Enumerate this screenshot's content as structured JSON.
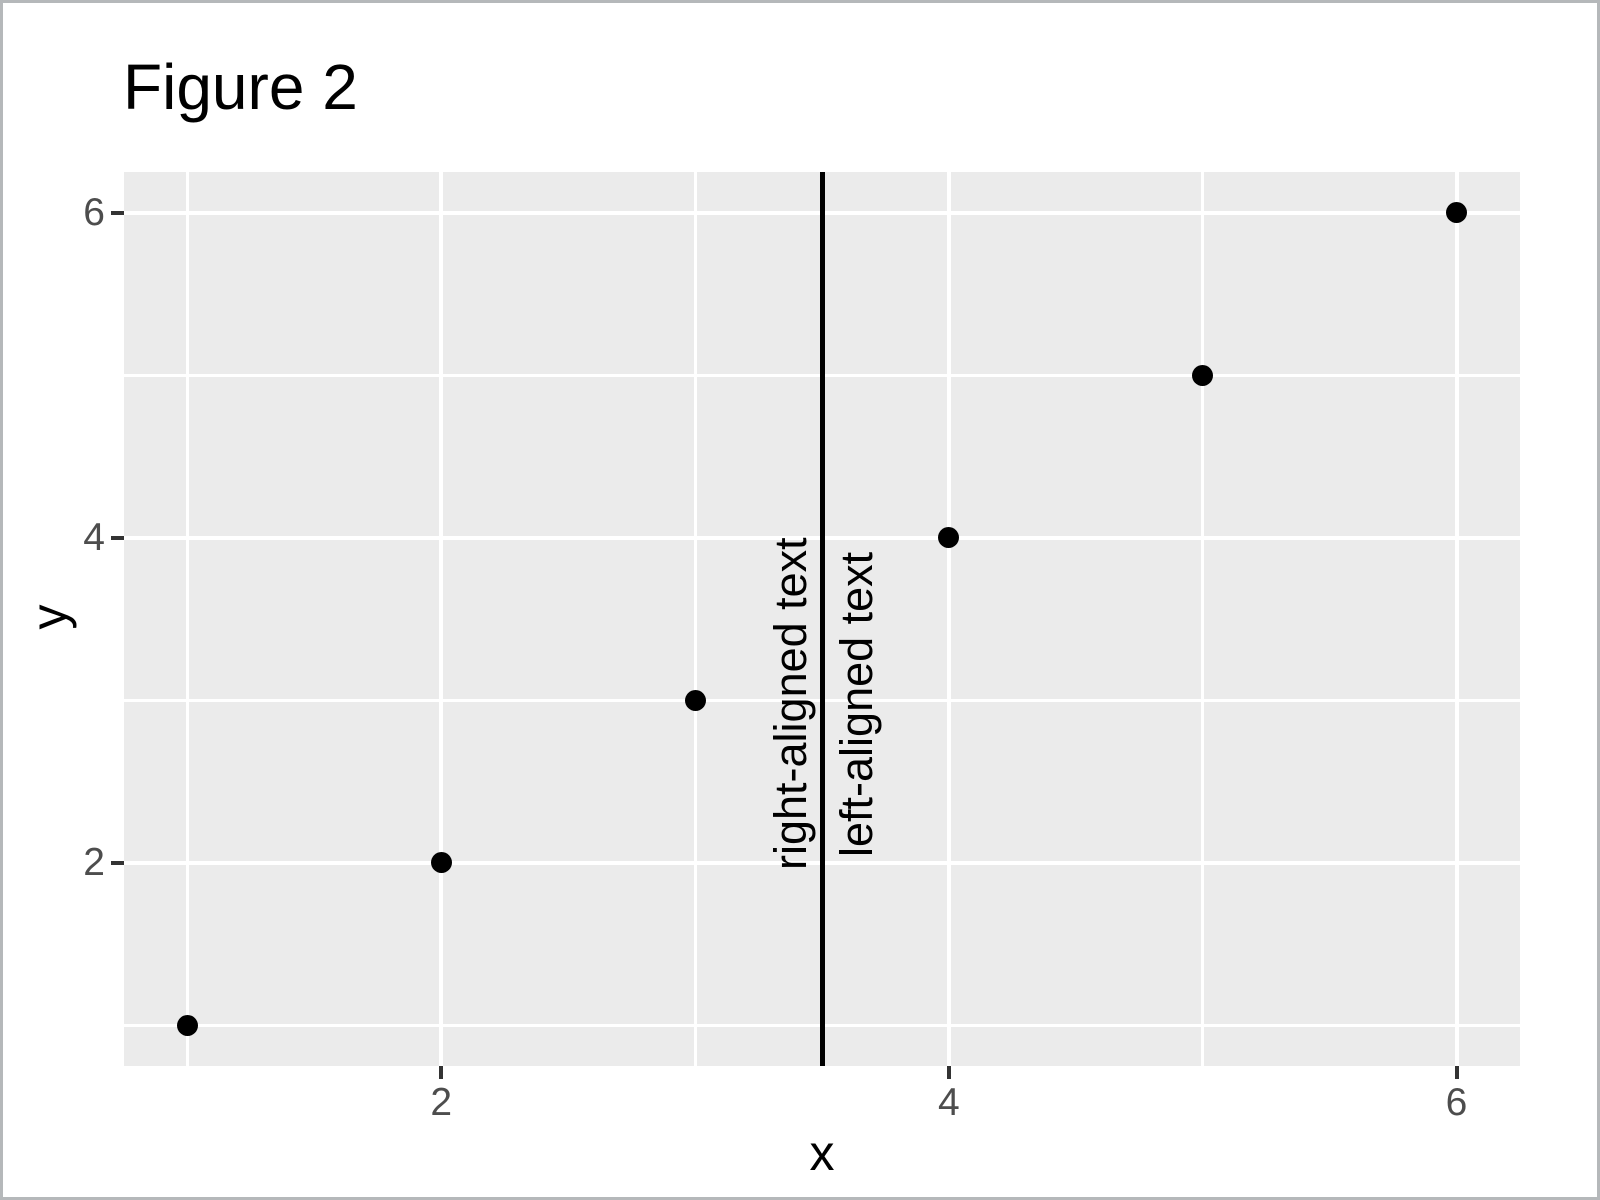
{
  "window": {
    "background": "#FFFFFF",
    "border_color": "#B5B8BA"
  },
  "chart_data": {
    "type": "scatter",
    "title": "Figure 2",
    "xlabel": "x",
    "ylabel": "y",
    "points": {
      "x": [
        1,
        2,
        3,
        4,
        5,
        6
      ],
      "y": [
        1,
        2,
        3,
        4,
        5,
        6
      ]
    },
    "xlim": [
      0.75,
      6.25
    ],
    "ylim": [
      0.75,
      6.25
    ],
    "x_major_ticks": [
      2,
      4,
      6
    ],
    "y_major_ticks": [
      2,
      4,
      6
    ],
    "x_minor_gridlines": [
      1,
      3,
      5
    ],
    "y_minor_gridlines": [
      1,
      3,
      5
    ],
    "grid": "major and minor white gridlines on grey panel",
    "legend": "none",
    "vline": {
      "x": 3.5,
      "color": "#000000"
    },
    "annotations": [
      {
        "label": "right-aligned text",
        "x": 3.5,
        "y": 2,
        "angle": 90,
        "side": "left-of-line"
      },
      {
        "label": "left-aligned text",
        "x": 3.5,
        "y": 2,
        "angle": 90,
        "side": "right-of-line"
      }
    ],
    "style": {
      "theme": "ggplot2-grey",
      "panel_background": "#EBEBEB",
      "gridline_color": "#FFFFFF",
      "point_color": "#000000",
      "tick_label_color": "#4D4D4D",
      "tick_mark_color": "#333333",
      "title_color": "#000000"
    }
  }
}
